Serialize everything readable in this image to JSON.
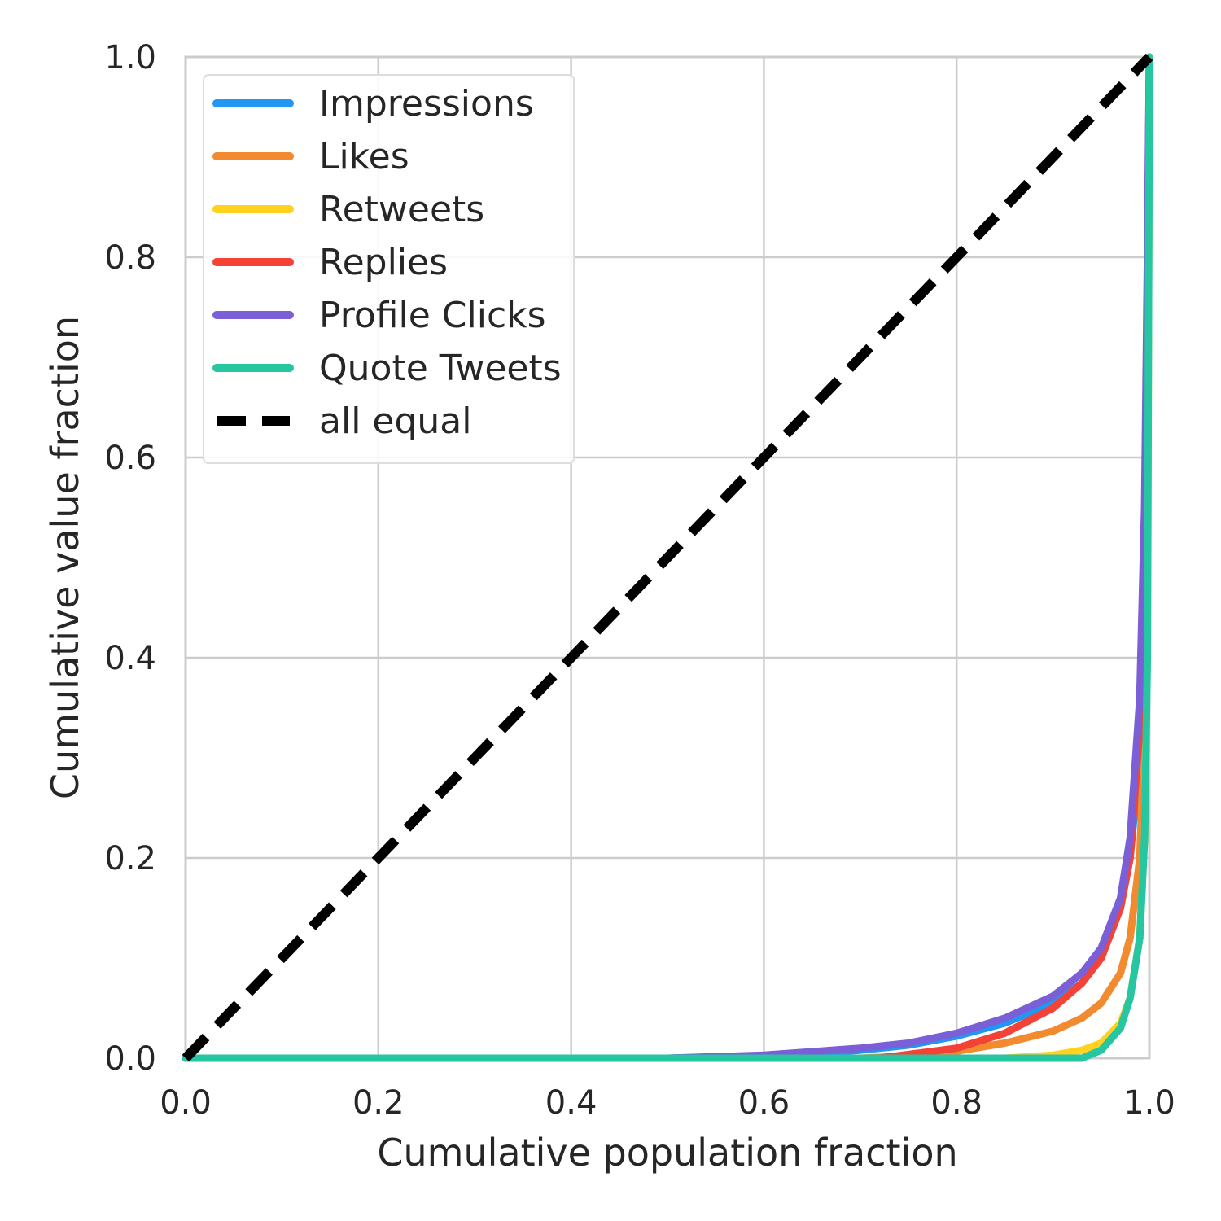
{
  "chart_data": {
    "type": "line",
    "title": "",
    "xlabel": "Cumulative population fraction",
    "ylabel": "Cumulative value fraction",
    "xlim": [
      0.0,
      1.0
    ],
    "ylim": [
      0.0,
      1.0
    ],
    "xticks": [
      "0.0",
      "0.2",
      "0.4",
      "0.6",
      "0.8",
      "1.0"
    ],
    "yticks": [
      "0.0",
      "0.2",
      "0.4",
      "0.6",
      "0.8",
      "1.0"
    ],
    "grid": true,
    "legend_position": "upper-left",
    "series": [
      {
        "name": "Impressions",
        "color": "#2196f3",
        "style": "solid",
        "points": [
          [
            0.0,
            0.0
          ],
          [
            0.5,
            0.0
          ],
          [
            0.6,
            0.002
          ],
          [
            0.7,
            0.008
          ],
          [
            0.75,
            0.013
          ],
          [
            0.8,
            0.022
          ],
          [
            0.85,
            0.035
          ],
          [
            0.9,
            0.055
          ],
          [
            0.93,
            0.075
          ],
          [
            0.95,
            0.1
          ],
          [
            0.97,
            0.15
          ],
          [
            0.98,
            0.2
          ],
          [
            0.99,
            0.3
          ],
          [
            0.995,
            0.45
          ],
          [
            0.998,
            0.7
          ],
          [
            1.0,
            1.0
          ]
        ]
      },
      {
        "name": "Likes",
        "color": "#f28a30",
        "style": "solid",
        "points": [
          [
            0.0,
            0.0
          ],
          [
            0.7,
            0.0
          ],
          [
            0.75,
            0.002
          ],
          [
            0.8,
            0.007
          ],
          [
            0.85,
            0.015
          ],
          [
            0.9,
            0.027
          ],
          [
            0.93,
            0.04
          ],
          [
            0.95,
            0.055
          ],
          [
            0.97,
            0.085
          ],
          [
            0.98,
            0.12
          ],
          [
            0.99,
            0.2
          ],
          [
            0.995,
            0.33
          ],
          [
            0.998,
            0.55
          ],
          [
            1.0,
            1.0
          ]
        ]
      },
      {
        "name": "Retweets",
        "color": "#ffd21f",
        "style": "solid",
        "points": [
          [
            0.0,
            0.0
          ],
          [
            0.85,
            0.0
          ],
          [
            0.9,
            0.003
          ],
          [
            0.93,
            0.008
          ],
          [
            0.95,
            0.015
          ],
          [
            0.97,
            0.035
          ],
          [
            0.98,
            0.06
          ],
          [
            0.99,
            0.12
          ],
          [
            0.995,
            0.22
          ],
          [
            0.998,
            0.42
          ],
          [
            1.0,
            1.0
          ]
        ]
      },
      {
        "name": "Replies",
        "color": "#f44336",
        "style": "solid",
        "points": [
          [
            0.0,
            0.0
          ],
          [
            0.72,
            0.0
          ],
          [
            0.8,
            0.01
          ],
          [
            0.85,
            0.025
          ],
          [
            0.9,
            0.05
          ],
          [
            0.93,
            0.075
          ],
          [
            0.95,
            0.1
          ],
          [
            0.97,
            0.15
          ],
          [
            0.98,
            0.2
          ],
          [
            0.99,
            0.33
          ],
          [
            0.995,
            0.5
          ],
          [
            0.998,
            0.72
          ],
          [
            1.0,
            1.0
          ]
        ]
      },
      {
        "name": "Profile Clicks",
        "color": "#7a5fd6",
        "style": "solid",
        "points": [
          [
            0.0,
            0.0
          ],
          [
            0.5,
            0.0
          ],
          [
            0.6,
            0.003
          ],
          [
            0.7,
            0.01
          ],
          [
            0.75,
            0.015
          ],
          [
            0.8,
            0.025
          ],
          [
            0.85,
            0.04
          ],
          [
            0.9,
            0.062
          ],
          [
            0.93,
            0.085
          ],
          [
            0.95,
            0.11
          ],
          [
            0.97,
            0.16
          ],
          [
            0.98,
            0.22
          ],
          [
            0.99,
            0.36
          ],
          [
            0.995,
            0.55
          ],
          [
            0.998,
            0.8
          ],
          [
            1.0,
            1.0
          ]
        ]
      },
      {
        "name": "Quote Tweets",
        "color": "#26c6a0",
        "style": "solid",
        "points": [
          [
            0.0,
            0.0
          ],
          [
            0.93,
            0.0
          ],
          [
            0.95,
            0.008
          ],
          [
            0.97,
            0.03
          ],
          [
            0.98,
            0.06
          ],
          [
            0.99,
            0.12
          ],
          [
            0.995,
            0.22
          ],
          [
            0.998,
            0.4
          ],
          [
            1.0,
            1.0
          ]
        ]
      },
      {
        "name": "all equal",
        "color": "#000000",
        "style": "dashed",
        "points": [
          [
            0.0,
            0.0
          ],
          [
            1.0,
            1.0
          ]
        ]
      }
    ]
  }
}
